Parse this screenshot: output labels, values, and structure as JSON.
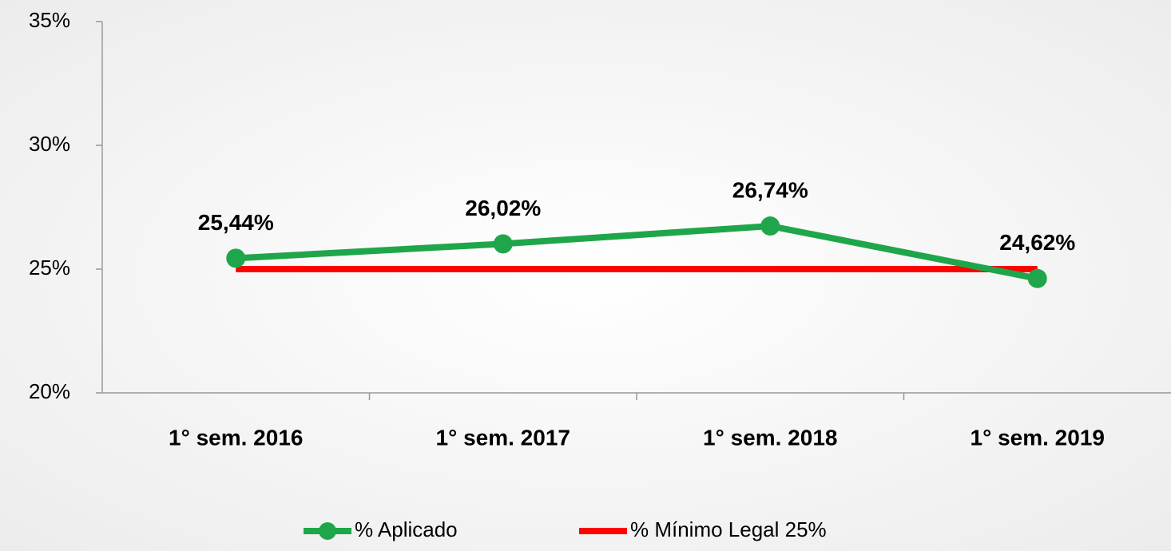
{
  "chart_data": {
    "type": "line",
    "categories": [
      "1° sem. 2016",
      "1° sem. 2017",
      "1° sem. 2018",
      "1° sem. 2019"
    ],
    "series": [
      {
        "name": "% Aplicado",
        "color": "#1fa64a",
        "values": [
          25.44,
          26.02,
          26.74,
          24.62
        ],
        "value_labels": [
          "25,44%",
          "26,02%",
          "26,74%",
          "24,62%"
        ],
        "marker": true
      },
      {
        "name": "% Mínimo Legal 25%",
        "color": "#ff0000",
        "values": [
          25,
          25,
          25,
          25
        ],
        "marker": false
      }
    ],
    "ylim": [
      20,
      35
    ],
    "yticks": [
      {
        "value": 20,
        "label": "20%"
      },
      {
        "value": 25,
        "label": "25%"
      },
      {
        "value": 30,
        "label": "30%"
      },
      {
        "value": 35,
        "label": "35%"
      }
    ],
    "grid": false,
    "legend": "bottom"
  }
}
